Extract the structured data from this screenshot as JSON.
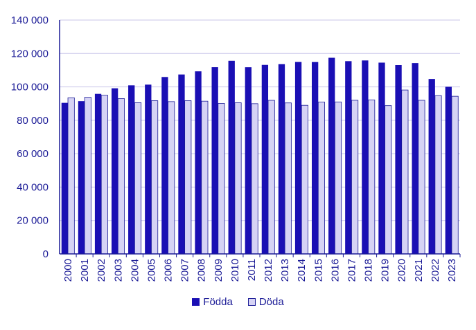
{
  "chart_data": {
    "type": "bar",
    "categories": [
      "2000",
      "2001",
      "2002",
      "2003",
      "2004",
      "2005",
      "2006",
      "2007",
      "2008",
      "2009",
      "2010",
      "2011",
      "2012",
      "2013",
      "2014",
      "2015",
      "2016",
      "2017",
      "2018",
      "2019",
      "2020",
      "2021",
      "2022",
      "2023"
    ],
    "series": [
      {
        "name": "Födda",
        "color": "#1a0fb4",
        "values": [
          90441,
          91466,
          95815,
          99157,
          100928,
          101346,
          105913,
          107421,
          109301,
          111801,
          115641,
          111770,
          113177,
          113593,
          114907,
          114870,
          117425,
          115416,
          115832,
          114523,
          113077,
          114263,
          104734,
          100051
        ]
      },
      {
        "name": "Döda",
        "color": "#d6d3f5",
        "values": [
          93461,
          93752,
          95009,
          92961,
          90532,
          91710,
          91177,
          91729,
          91449,
          90080,
          90487,
          89938,
          91938,
          90402,
          88976,
          90907,
          90982,
          91972,
          92185,
          88766,
          98124,
          91958,
          94737,
          94385
        ]
      }
    ],
    "yticks": [
      "0",
      "20 000",
      "40 000",
      "60 000",
      "80 000",
      "100 000",
      "120 000",
      "140 000"
    ],
    "ylim": [
      0,
      140000
    ],
    "grid": true,
    "legend_position": "bottom-center"
  }
}
